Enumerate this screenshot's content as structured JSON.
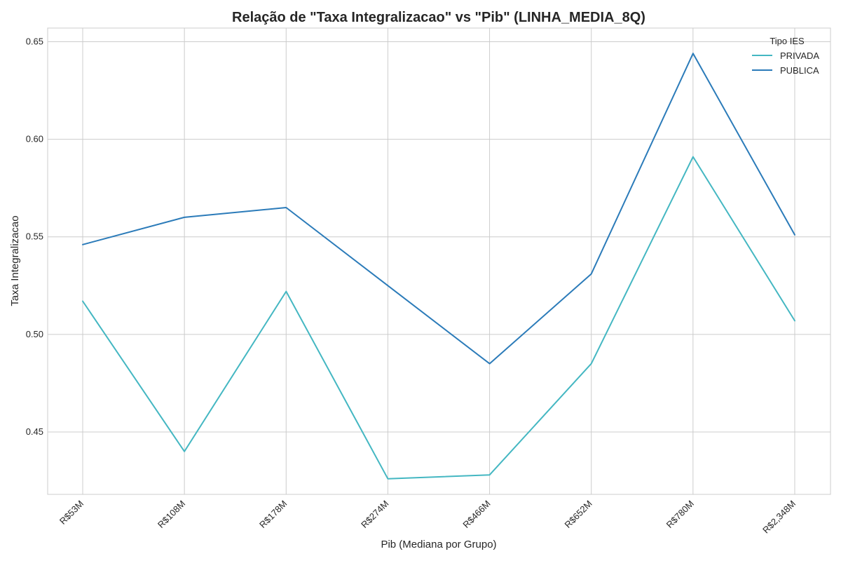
{
  "chart_data": {
    "type": "line",
    "title": "Relação de \"Taxa Integralizacao\" vs \"Pib\" (LINHA_MEDIA_8Q)",
    "xlabel": "Pib (Mediana por Grupo)",
    "ylabel": "Taxa Integralizacao",
    "categories": [
      "R$53M",
      "R$108M",
      "R$178M",
      "R$274M",
      "R$466M",
      "R$652M",
      "R$780M",
      "R$2,348M"
    ],
    "ylim": [
      0.418,
      0.657
    ],
    "yticks": [
      0.45,
      0.5,
      0.55,
      0.6,
      0.65
    ],
    "ytick_labels": [
      "0.45",
      "0.50",
      "0.55",
      "0.60",
      "0.65"
    ],
    "grid": true,
    "legend": {
      "title": "Tipo IES",
      "placement": "top-right"
    },
    "series": [
      {
        "name": "PRIVADA",
        "color": "#44b7c2",
        "values": [
          0.517,
          0.44,
          0.522,
          0.426,
          0.428,
          0.485,
          0.591,
          0.507
        ]
      },
      {
        "name": "PUBLICA",
        "color": "#2b7bb9",
        "values": [
          0.546,
          0.56,
          0.565,
          0.525,
          0.485,
          0.531,
          0.644,
          0.551
        ]
      }
    ]
  }
}
